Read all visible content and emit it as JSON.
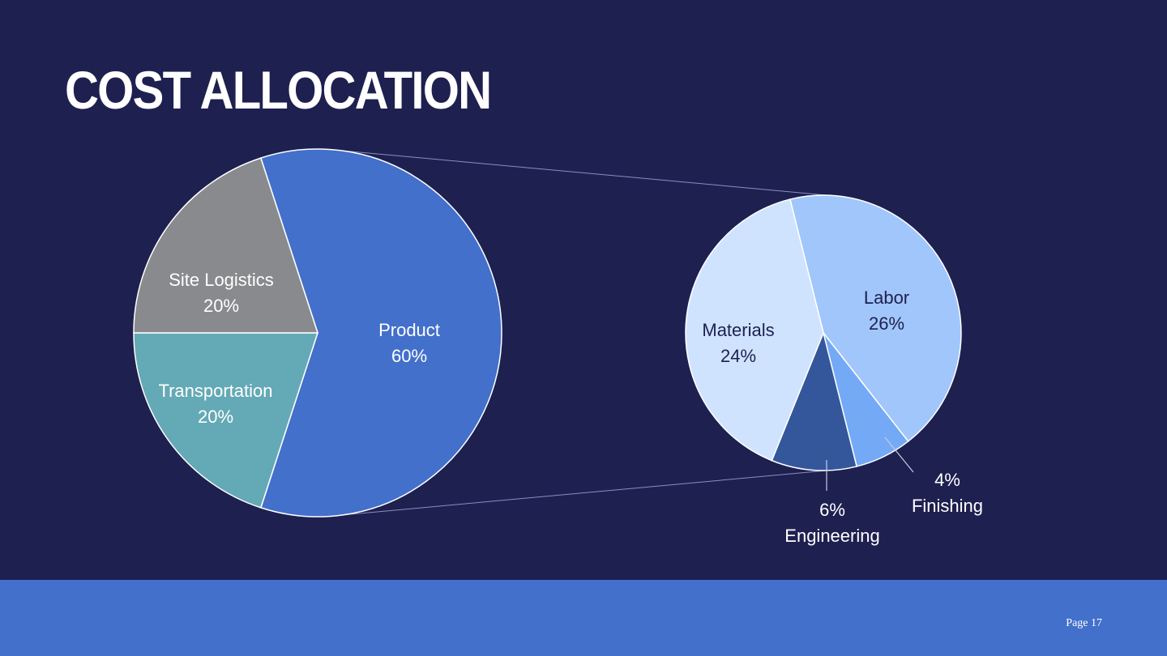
{
  "slide": {
    "title": "COST ALLOCATION",
    "page_label": "Page 17"
  },
  "colors": {
    "background": "#1e2050",
    "footer": "#4270cb",
    "product": "#4270cb",
    "site_logistics": "#898a8d",
    "transportation": "#64a9b6",
    "materials": "#cfe3ff",
    "labor": "#a1c6fb",
    "finishing": "#74a9f6",
    "engineering": "#34579c"
  },
  "chart_data": {
    "type": "pie",
    "subtype": "pie-of-pie",
    "main_pie": {
      "slices": [
        {
          "name": "Product",
          "value": 60,
          "label": "60%",
          "color": "#4270cb",
          "text_color": "#ffffff"
        },
        {
          "name": "Transportation",
          "value": 20,
          "label": "20%",
          "color": "#64a9b6",
          "text_color": "#ffffff"
        },
        {
          "name": "Site Logistics",
          "value": 20,
          "label": "20%",
          "color": "#898a8d",
          "text_color": "#ffffff"
        }
      ]
    },
    "detail_pie": {
      "exploded_from": "Product",
      "slices": [
        {
          "name": "Labor",
          "value": 26,
          "label": "26%",
          "color": "#a1c6fb",
          "text_color": "#1e2050"
        },
        {
          "name": "Finishing",
          "value": 4,
          "label": "4%",
          "color": "#74a9f6",
          "text_color": "#ffffff"
        },
        {
          "name": "Engineering",
          "value": 6,
          "label": "6%",
          "color": "#34579c",
          "text_color": "#ffffff"
        },
        {
          "name": "Materials",
          "value": 24,
          "label": "24%",
          "color": "#cfe3ff",
          "text_color": "#1e2050"
        }
      ]
    }
  }
}
